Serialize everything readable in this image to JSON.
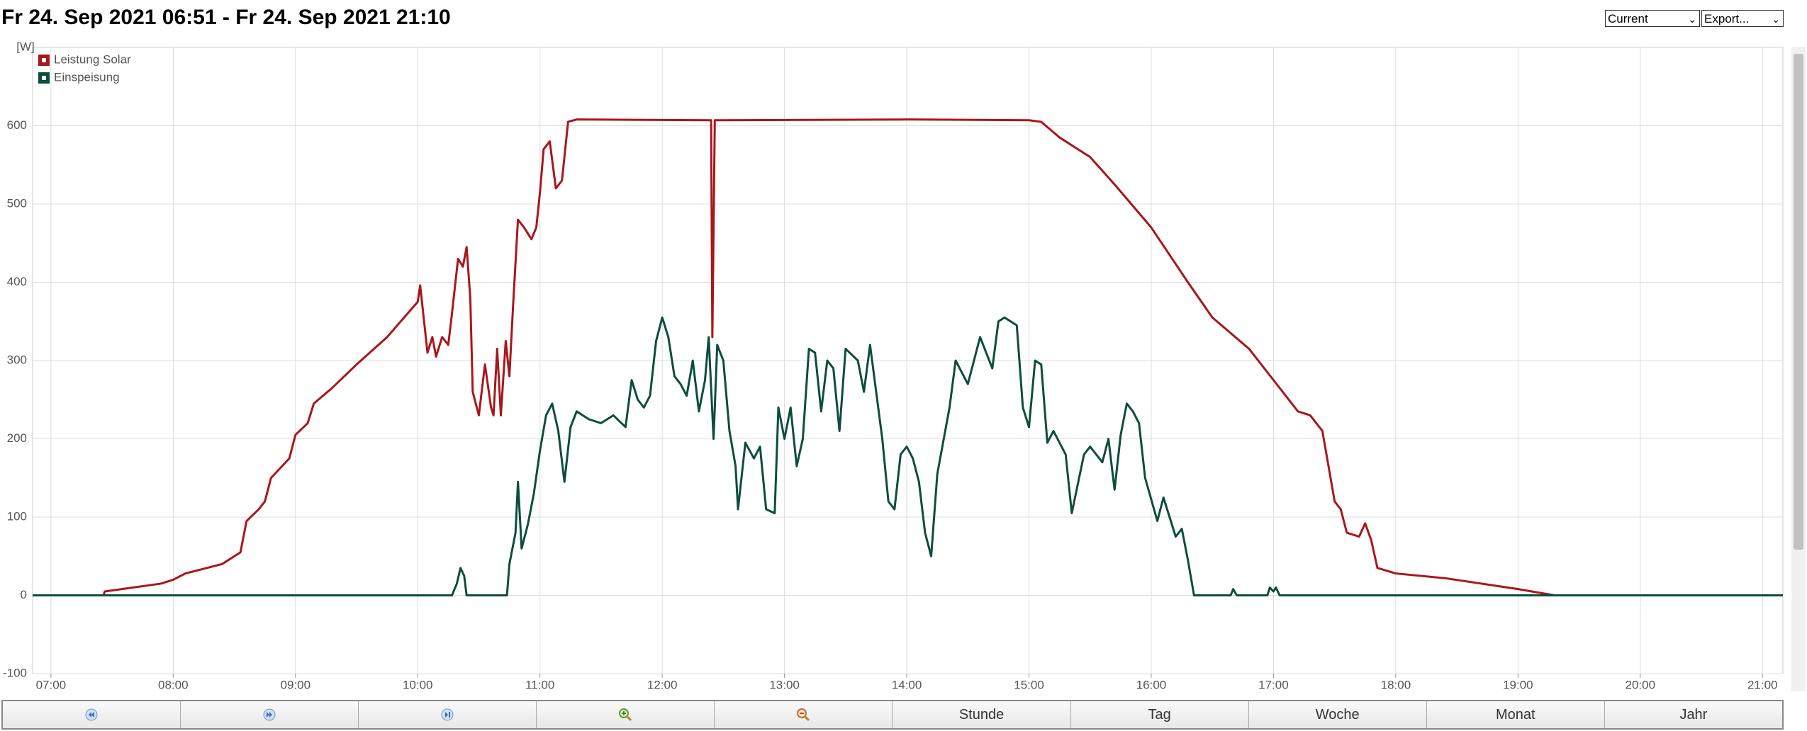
{
  "header": {
    "title": "Fr 24. Sep 2021 06:51 - Fr 24. Sep 2021 21:10",
    "select_period": "Current",
    "select_export": "Export..."
  },
  "chart_data": {
    "type": "line",
    "y_label": "[W]",
    "grid": true,
    "legend": "top-left",
    "xlim": [
      6.85,
      21.1667
    ],
    "ylim": [
      -100,
      700
    ],
    "xticks": [
      {
        "value": 7,
        "label": "07:00"
      },
      {
        "value": 8,
        "label": "08:00"
      },
      {
        "value": 9,
        "label": "09:00"
      },
      {
        "value": 10,
        "label": "10:00"
      },
      {
        "value": 11,
        "label": "11:00"
      },
      {
        "value": 12,
        "label": "12:00"
      },
      {
        "value": 13,
        "label": "13:00"
      },
      {
        "value": 14,
        "label": "14:00"
      },
      {
        "value": 15,
        "label": "15:00"
      },
      {
        "value": 16,
        "label": "16:00"
      },
      {
        "value": 17,
        "label": "17:00"
      },
      {
        "value": 18,
        "label": "18:00"
      },
      {
        "value": 19,
        "label": "19:00"
      },
      {
        "value": 20,
        "label": "20:00"
      },
      {
        "value": 21,
        "label": "21:00"
      }
    ],
    "yticks": [
      -100,
      0,
      100,
      200,
      300,
      400,
      500,
      600
    ],
    "series": [
      {
        "name": "Leistung Solar",
        "color": "#a8171b",
        "x": [
          6.85,
          7.43,
          7.44,
          7.9,
          8.0,
          8.1,
          8.4,
          8.55,
          8.6,
          8.7,
          8.75,
          8.8,
          8.95,
          9.0,
          9.1,
          9.15,
          9.3,
          9.5,
          9.75,
          10.0,
          10.02,
          10.08,
          10.12,
          10.15,
          10.2,
          10.25,
          10.28,
          10.33,
          10.37,
          10.4,
          10.43,
          10.45,
          10.5,
          10.55,
          10.6,
          10.62,
          10.65,
          10.68,
          10.72,
          10.75,
          10.78,
          10.82,
          10.87,
          10.93,
          10.97,
          11.0,
          11.03,
          11.08,
          11.13,
          11.18,
          11.23,
          11.3,
          12.4,
          12.41,
          12.43,
          14.0,
          15.0,
          15.1,
          15.25,
          15.5,
          15.7,
          16.0,
          16.3,
          16.5,
          16.8,
          17.0,
          17.2,
          17.3,
          17.4,
          17.5,
          17.55,
          17.6,
          17.7,
          17.75,
          17.8,
          17.85,
          18.0,
          18.4,
          19.0,
          19.3,
          21.1667
        ],
        "values": [
          0,
          0,
          5,
          15,
          20,
          28,
          40,
          55,
          95,
          110,
          120,
          150,
          175,
          205,
          220,
          245,
          265,
          295,
          330,
          375,
          396,
          310,
          330,
          305,
          330,
          320,
          360,
          430,
          420,
          445,
          380,
          260,
          230,
          295,
          240,
          230,
          315,
          230,
          325,
          280,
          370,
          480,
          470,
          455,
          470,
          515,
          570,
          580,
          520,
          530,
          605,
          608,
          607,
          330,
          607,
          608,
          607,
          605,
          585,
          560,
          525,
          470,
          400,
          355,
          315,
          275,
          235,
          230,
          210,
          120,
          110,
          80,
          75,
          92,
          70,
          35,
          28,
          22,
          8,
          0,
          0
        ]
      },
      {
        "name": "Einspeisung",
        "color": "#0d4d3d",
        "x": [
          6.85,
          10.28,
          10.32,
          10.35,
          10.38,
          10.4,
          10.73,
          10.75,
          10.8,
          10.82,
          10.85,
          10.9,
          10.95,
          11.0,
          11.05,
          11.1,
          11.15,
          11.2,
          11.25,
          11.3,
          11.4,
          11.5,
          11.6,
          11.7,
          11.75,
          11.8,
          11.85,
          11.9,
          11.95,
          12.0,
          12.05,
          12.1,
          12.15,
          12.2,
          12.25,
          12.3,
          12.35,
          12.38,
          12.42,
          12.45,
          12.5,
          12.55,
          12.6,
          12.62,
          12.68,
          12.75,
          12.8,
          12.85,
          12.92,
          12.95,
          13.0,
          13.05,
          13.1,
          13.15,
          13.2,
          13.25,
          13.3,
          13.35,
          13.4,
          13.45,
          13.5,
          13.6,
          13.65,
          13.7,
          13.8,
          13.85,
          13.9,
          13.95,
          14.0,
          14.05,
          14.1,
          14.15,
          14.2,
          14.25,
          14.35,
          14.4,
          14.5,
          14.6,
          14.7,
          14.75,
          14.8,
          14.9,
          14.95,
          15.0,
          15.05,
          15.1,
          15.15,
          15.2,
          15.3,
          15.35,
          15.45,
          15.5,
          15.6,
          15.65,
          15.7,
          15.75,
          15.8,
          15.85,
          15.9,
          15.95,
          16.05,
          16.1,
          16.15,
          16.2,
          16.25,
          16.3,
          16.35,
          16.65,
          16.67,
          16.7,
          16.95,
          16.97,
          17.0,
          17.02,
          17.05,
          21.1667
        ],
        "values": [
          0,
          0,
          15,
          35,
          25,
          0,
          0,
          40,
          80,
          145,
          60,
          90,
          130,
          185,
          230,
          245,
          210,
          145,
          215,
          235,
          225,
          220,
          230,
          215,
          275,
          250,
          240,
          255,
          325,
          355,
          330,
          280,
          270,
          255,
          300,
          235,
          275,
          330,
          200,
          320,
          300,
          210,
          165,
          110,
          195,
          175,
          190,
          110,
          105,
          240,
          200,
          240,
          165,
          200,
          315,
          310,
          235,
          300,
          290,
          210,
          315,
          300,
          260,
          320,
          200,
          120,
          110,
          180,
          190,
          175,
          145,
          80,
          50,
          155,
          240,
          300,
          270,
          330,
          290,
          350,
          355,
          345,
          240,
          215,
          300,
          295,
          195,
          210,
          180,
          105,
          180,
          190,
          170,
          200,
          135,
          205,
          245,
          235,
          220,
          150,
          95,
          125,
          100,
          75,
          85,
          45,
          0,
          0,
          8,
          0,
          0,
          10,
          5,
          10,
          0,
          0
        ]
      }
    ]
  },
  "toolbar": {
    "buttons": [
      "Stunde",
      "Tag",
      "Woche",
      "Monat",
      "Jahr"
    ]
  }
}
